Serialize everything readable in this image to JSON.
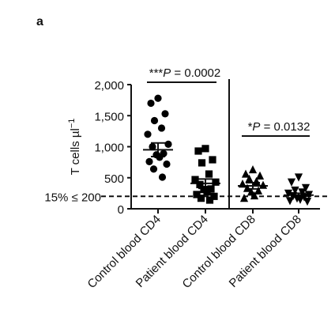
{
  "panel_label": "a",
  "chart_data": {
    "type": "scatter",
    "ylabel": "T cells µl",
    "ylabel_exponent": "−1",
    "ylim": [
      0,
      2000
    ],
    "yticks": [
      {
        "value": 0,
        "label": "0"
      },
      {
        "value": 500,
        "label": "500"
      },
      {
        "value": 1000,
        "label": "1,000"
      },
      {
        "value": 1500,
        "label": "1,500"
      },
      {
        "value": 2000,
        "label": "2,000"
      }
    ],
    "threshold": {
      "value": 200,
      "label": "15% ≤ 200"
    },
    "categories": [
      "Control blood CD4",
      "Patient blood CD4",
      "Control blood CD8",
      "Patient blood CD8"
    ],
    "series": [
      {
        "category": "Control blood CD4",
        "marker": "circle",
        "mean": 950,
        "sem_low": 840,
        "sem_high": 1060,
        "points": [
          1780,
          1700,
          1530,
          1420,
          1300,
          1200,
          1040,
          1000,
          890,
          870,
          830,
          760,
          720,
          640,
          510
        ]
      },
      {
        "category": "Patient blood CD4",
        "marker": "square",
        "mean": 410,
        "sem_low": 330,
        "sem_high": 480,
        "points": [
          970,
          930,
          790,
          740,
          560,
          470,
          430,
          390,
          320,
          310,
          270,
          230,
          200,
          170,
          140
        ]
      },
      {
        "category": "Control blood CD8",
        "marker": "triangle-up",
        "mean": 370,
        "sem_low": 320,
        "sem_high": 420,
        "points": [
          630,
          560,
          530,
          480,
          440,
          400,
          380,
          330,
          290,
          270,
          210,
          170
        ]
      },
      {
        "category": "Patient blood CD8",
        "marker": "triangle-down",
        "mean": 220,
        "sem_low": 190,
        "sem_high": 250,
        "points": [
          510,
          430,
          340,
          300,
          270,
          250,
          230,
          210,
          190,
          170,
          150,
          130,
          120
        ]
      }
    ],
    "significance": [
      {
        "from": 0,
        "to": 1,
        "stars": "***",
        "label": "P = 0.0002"
      },
      {
        "from": 2,
        "to": 3,
        "stars": "*",
        "label": "P = 0.0132"
      }
    ]
  }
}
